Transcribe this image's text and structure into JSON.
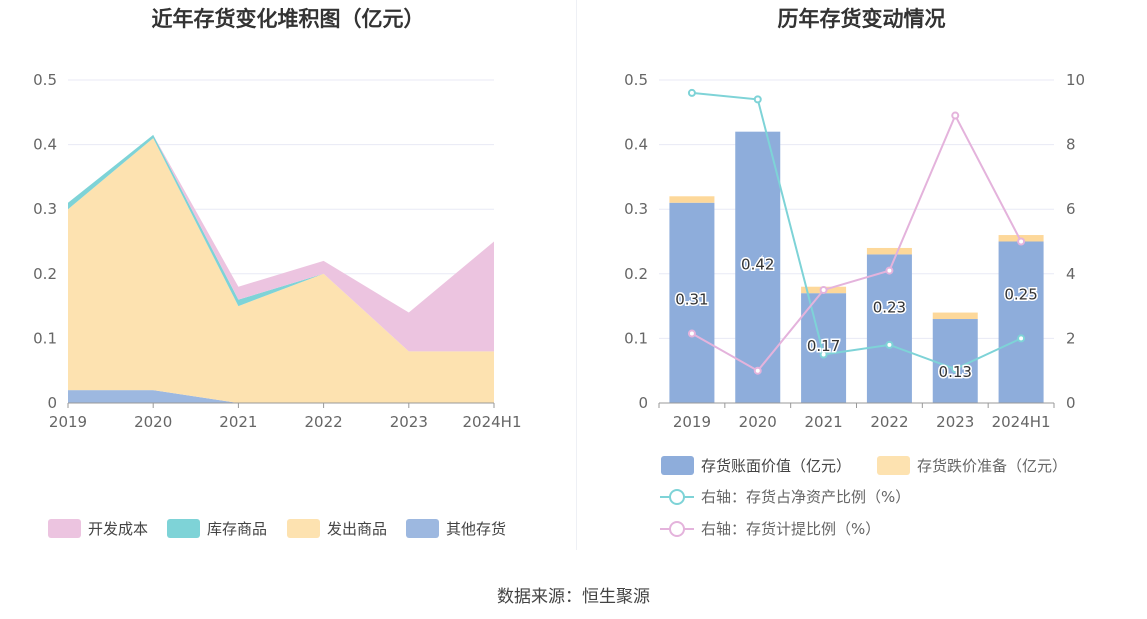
{
  "colors": {
    "kaifa": "#ecc4e0",
    "kucun": "#7ed3d7",
    "fachu": "#fde2b0",
    "qita": "#9db8e0",
    "bar_book": "#8eaddb",
    "bar_reserve": "#fdd89a",
    "line_ratio": "#7ed3d7",
    "line_provision": "#e4b3dc",
    "grid": "#e8eaf5",
    "axis": "#999999"
  },
  "left": {
    "title": "近年存货变化堆积图（亿元）",
    "legend": [
      {
        "name": "开发成本",
        "color": "#ecc4e0"
      },
      {
        "name": "库存商品",
        "color": "#7ed3d7"
      },
      {
        "name": "发出商品",
        "color": "#fde2b0"
      },
      {
        "name": "其他存货",
        "color": "#9db8e0"
      }
    ]
  },
  "right": {
    "title": "历年存货变动情况",
    "legend": [
      {
        "name": "存货账面价值（亿元）",
        "type": "bar",
        "color": "#8eaddb"
      },
      {
        "name": "存货跌价准备（亿元）",
        "type": "bar",
        "color": "#fde2b0"
      },
      {
        "name": "右轴：存货占净资产比例（%）",
        "type": "line",
        "color": "#7ed3d7"
      },
      {
        "name": "右轴：存货计提比例（%）",
        "type": "line",
        "color": "#e4b3dc"
      }
    ]
  },
  "source": "数据来源：恒生聚源",
  "chart_data": [
    {
      "type": "area",
      "stacked": true,
      "title": "近年存货变化堆积图（亿元）",
      "categories": [
        "2019",
        "2020",
        "2021",
        "2022",
        "2023",
        "2024H1"
      ],
      "ylim": [
        0,
        0.5
      ],
      "yticks": [
        "0",
        "0.1",
        "0.2",
        "0.3",
        "0.4",
        "0.5"
      ],
      "grid": true,
      "legend_position": "bottom",
      "series": [
        {
          "name": "其他存货",
          "values": [
            0.02,
            0.02,
            0.0,
            0.0,
            0.0,
            0.0
          ]
        },
        {
          "name": "发出商品",
          "values": [
            0.28,
            0.39,
            0.15,
            0.2,
            0.08,
            0.08
          ]
        },
        {
          "name": "库存商品",
          "values": [
            0.01,
            0.005,
            0.01,
            0.0,
            0.0,
            0.0
          ]
        },
        {
          "name": "开发成本",
          "values": [
            0.0,
            0.0,
            0.02,
            0.02,
            0.06,
            0.17
          ]
        }
      ]
    },
    {
      "type": "bar",
      "stacked": true,
      "title": "历年存货变动情况",
      "categories": [
        "2019",
        "2020",
        "2021",
        "2022",
        "2023",
        "2024H1"
      ],
      "ylim": [
        0,
        0.5
      ],
      "yticks": [
        "0",
        "0.1",
        "0.2",
        "0.3",
        "0.4",
        "0.5"
      ],
      "y2lim": [
        0,
        10
      ],
      "y2ticks": [
        "0",
        "2",
        "4",
        "6",
        "8",
        "10"
      ],
      "grid": true,
      "legend_position": "bottom",
      "series": [
        {
          "name": "存货账面价值（亿元）",
          "type": "bar",
          "axis": "left",
          "values": [
            0.31,
            0.42,
            0.17,
            0.23,
            0.13,
            0.25
          ],
          "labels": [
            "0.31",
            "0.42",
            "0.17",
            "0.23",
            "0.13",
            "0.25"
          ]
        },
        {
          "name": "存货跌价准备（亿元）",
          "type": "bar",
          "axis": "left",
          "values": [
            0.01,
            0.0,
            0.01,
            0.01,
            0.01,
            0.01
          ]
        },
        {
          "name": "右轴：存货占净资产比例（%）",
          "type": "line",
          "axis": "right",
          "values": [
            9.6,
            9.4,
            1.5,
            1.8,
            1.05,
            2.0
          ]
        },
        {
          "name": "右轴：存货计提比例（%）",
          "type": "line",
          "axis": "right",
          "values": [
            2.15,
            1.0,
            3.5,
            4.1,
            8.9,
            5.0
          ]
        }
      ]
    }
  ]
}
